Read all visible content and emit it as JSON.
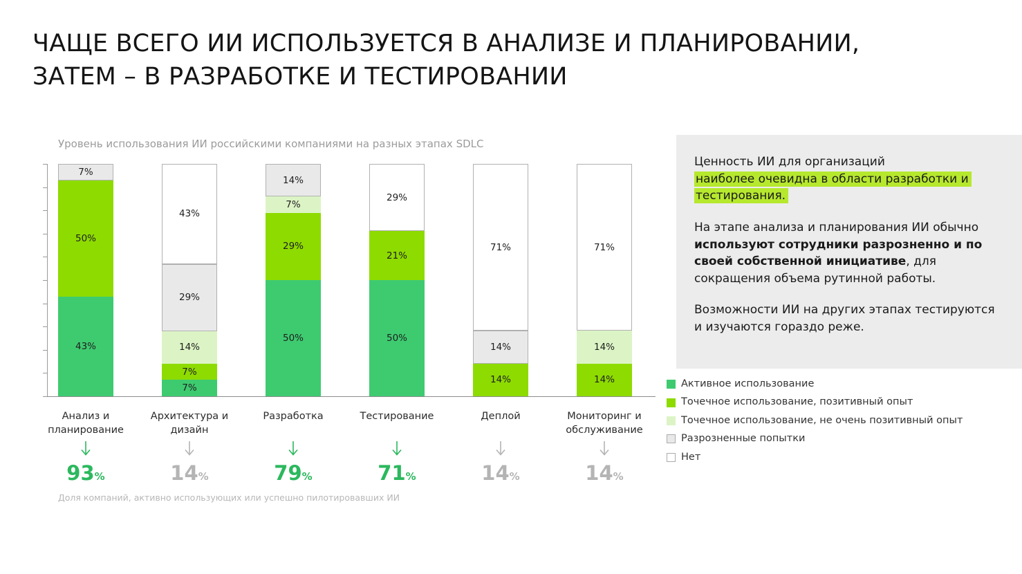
{
  "title": "ЧАЩЕ ВСЕГО ИИ ИСПОЛЬЗУЕТСЯ В АНАЛИЗЕ И ПЛАНИРОВАНИИ,\nЗАТЕМ – В РАЗРАБОТКЕ И ТЕСТИРОВАНИИ",
  "chart_data": {
    "type": "bar",
    "stacked": true,
    "title": "Уровень использования ИИ российскими компаниями на разных этапах SDLC",
    "ylim": [
      0,
      100
    ],
    "grid": false,
    "legend_position": "right-bottom",
    "categories": [
      "Анализ и\nпланирование",
      "Архитектура и\nдизайн",
      "Разработка",
      "Тестирование",
      "Деплой",
      "Мониторинг и\nобслуживание"
    ],
    "series": [
      {
        "name": "Активное использование",
        "color": "#3ecb70",
        "outlined": false,
        "values": [
          43,
          7,
          50,
          50,
          0,
          0
        ]
      },
      {
        "name": "Точечное использование, позитивный опыт",
        "color": "#8edb00",
        "outlined": false,
        "values": [
          50,
          7,
          29,
          21,
          14,
          14
        ]
      },
      {
        "name": "Точечное использование, не очень позитивный опыт",
        "color": "#dcf4c5",
        "outlined": false,
        "values": [
          0,
          14,
          7,
          0,
          0,
          14
        ]
      },
      {
        "name": "Разрозненные попытки",
        "color": "#e9e9e9",
        "outlined": true,
        "values": [
          7,
          29,
          14,
          0,
          14,
          0
        ]
      },
      {
        "name": "Нет",
        "color": "#ffffff",
        "outlined": true,
        "values": [
          0,
          43,
          0,
          29,
          71,
          71
        ]
      }
    ],
    "totals": [
      {
        "value": 93,
        "accent": true
      },
      {
        "value": 14,
        "accent": false
      },
      {
        "value": 79,
        "accent": true
      },
      {
        "value": 71,
        "accent": true
      },
      {
        "value": 14,
        "accent": false
      },
      {
        "value": 14,
        "accent": false
      }
    ],
    "footnote": "Доля компаний, активно использующих или успешно пилотировавших ИИ"
  },
  "colors": {
    "accent_green": "#2cb85e",
    "muted_gray": "#b4b4b4",
    "highlight": "#b6e82e"
  },
  "sidebar": {
    "p1_normal": "Ценность ИИ для организаций",
    "p1_highlight": "наиболее очевидна в области разработки и тестирования.",
    "p2_part1": "На этапе анализа и планирования ИИ обычно",
    "p2_bold": "используют сотрудники разрозненно и по своей собственной инициативе",
    "p2_part2": ", для сокращения объема рутинной работы.",
    "p3": "Возможности ИИ на других этапах тестируются и изучаются гораздо реже."
  },
  "legend": {
    "items": [
      {
        "label": "Активное использование",
        "color": "#3ecb70",
        "outlined": false
      },
      {
        "label": "Точечное использование, позитивный опыт",
        "color": "#8edb00",
        "outlined": false
      },
      {
        "label": "Точечное использование, не очень позитивный опыт",
        "color": "#dcf4c5",
        "outlined": false
      },
      {
        "label": "Разрозненные попытки",
        "color": "#e9e9e9",
        "outlined": true
      },
      {
        "label": "Нет",
        "color": "#ffffff",
        "outlined": true
      }
    ]
  }
}
